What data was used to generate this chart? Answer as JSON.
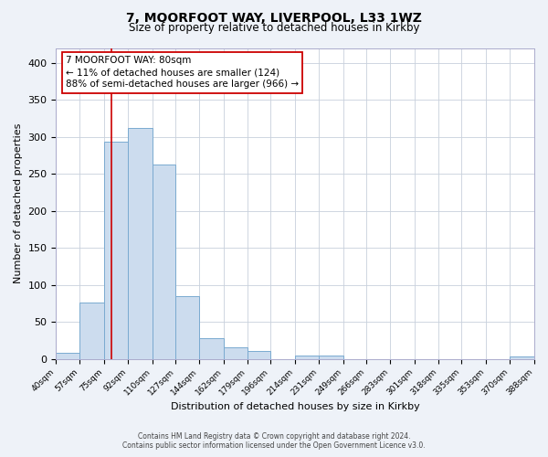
{
  "title_line1": "7, MOORFOOT WAY, LIVERPOOL, L33 1WZ",
  "title_line2": "Size of property relative to detached houses in Kirkby",
  "xlabel": "Distribution of detached houses by size in Kirkby",
  "ylabel": "Number of detached properties",
  "bin_edges": [
    40,
    57,
    75,
    92,
    110,
    127,
    144,
    162,
    179,
    196,
    214,
    231,
    249,
    266,
    283,
    301,
    318,
    335,
    353,
    370,
    388
  ],
  "bar_heights": [
    8,
    76,
    293,
    312,
    263,
    85,
    28,
    16,
    11,
    0,
    5,
    5,
    0,
    0,
    0,
    0,
    0,
    0,
    0,
    3
  ],
  "bar_color": "#ccdcee",
  "bar_edgecolor": "#7aaad0",
  "vertical_line_x": 80,
  "vertical_line_color": "#cc0000",
  "annotation_title": "7 MOORFOOT WAY: 80sqm",
  "annotation_line1": "← 11% of detached houses are smaller (124)",
  "annotation_line2": "88% of semi-detached houses are larger (966) →",
  "annotation_box_edgecolor": "#cc0000",
  "ylim": [
    0,
    420
  ],
  "yticks": [
    0,
    50,
    100,
    150,
    200,
    250,
    300,
    350,
    400
  ],
  "footer_line1": "Contains HM Land Registry data © Crown copyright and database right 2024.",
  "footer_line2": "Contains public sector information licensed under the Open Government Licence v3.0.",
  "background_color": "#eef2f8",
  "plot_background": "#ffffff",
  "grid_color": "#c8d0dc"
}
